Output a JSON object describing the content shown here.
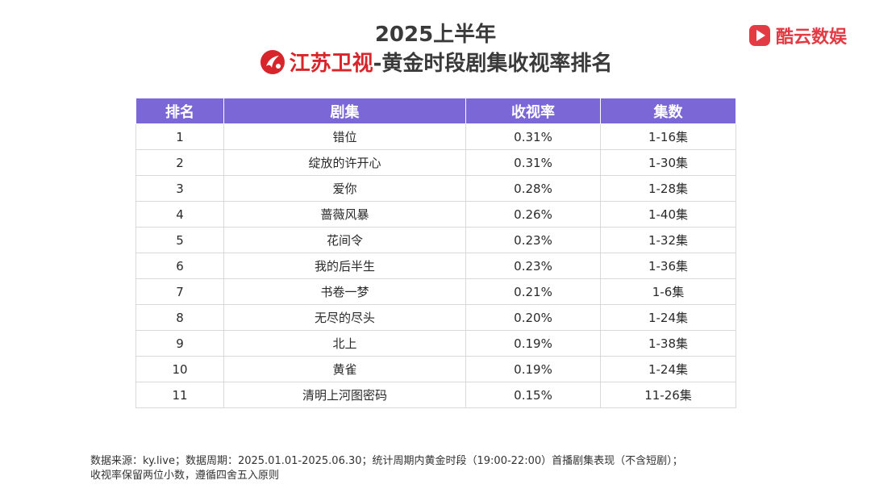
{
  "header": {
    "title_line1": "2025上半年",
    "channel_name": "江苏卫视",
    "title_suffix": "-黄金时段剧集收视率排名",
    "brand_name": "酷云数娱",
    "brand_color": "#e23b44",
    "channel_color": "#d7262b"
  },
  "table": {
    "header_color": "#7b68d6",
    "columns": [
      "排名",
      "剧集",
      "收视率",
      "集数"
    ],
    "rows": [
      [
        "1",
        "错位",
        "0.31%",
        "1-16集"
      ],
      [
        "2",
        "绽放的许开心",
        "0.31%",
        "1-30集"
      ],
      [
        "3",
        "爱你",
        "0.28%",
        "1-28集"
      ],
      [
        "4",
        "蔷薇风暴",
        "0.26%",
        "1-40集"
      ],
      [
        "5",
        "花间令",
        "0.23%",
        "1-32集"
      ],
      [
        "6",
        "我的后半生",
        "0.23%",
        "1-36集"
      ],
      [
        "7",
        "书卷一梦",
        "0.21%",
        "1-6集"
      ],
      [
        "8",
        "无尽的尽头",
        "0.20%",
        "1-24集"
      ],
      [
        "9",
        "北上",
        "0.19%",
        "1-38集"
      ],
      [
        "10",
        "黄雀",
        "0.19%",
        "1-24集"
      ],
      [
        "11",
        "清明上河图密码",
        "0.15%",
        "11-26集"
      ]
    ]
  },
  "footnote": {
    "line1": "数据来源：ky.live；数据周期：2025.01.01-2025.06.30；统计周期内黄金时段（19:00-22:00）首播剧集表现（不含短剧）；",
    "line2": "收视率保留两位小数，遵循四舍五入原则"
  }
}
